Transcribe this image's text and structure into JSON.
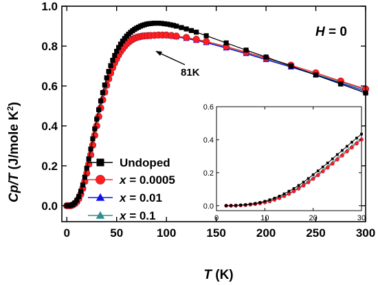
{
  "chart_data": {
    "type": "line",
    "main": {
      "xlabel_italic": "T",
      "xlabel_rest": " (K)",
      "ylabel_italic": "Cp/T",
      "ylabel_rest": " (J/mole K",
      "ylabel_sup": "2",
      "ylabel_close": ")",
      "xlim": [
        -5,
        300
      ],
      "ylim": [
        -0.08,
        1.0
      ],
      "xticks": [
        "0",
        "50",
        "100",
        "150",
        "200",
        "250",
        "300"
      ],
      "yticks": [
        "0.0",
        "0.2",
        "0.4",
        "0.6",
        "0.8",
        "1.0"
      ],
      "grid": false,
      "legend_position": "bottom-left",
      "annotations": {
        "field_italic": "H",
        "field_rest": " = 0",
        "arrow_label": "81K"
      },
      "series": [
        {
          "name": "Undoped",
          "color": "#000000",
          "marker": "square",
          "x": [
            0,
            2,
            4,
            6,
            8,
            10,
            12,
            14,
            16,
            18,
            20,
            22,
            24,
            26,
            28,
            30,
            32,
            34,
            36,
            38,
            40,
            42,
            44,
            46,
            48,
            50,
            52,
            54,
            56,
            58,
            60,
            62,
            64,
            66,
            68,
            70,
            72,
            74,
            76,
            78,
            80,
            82,
            84,
            86,
            88,
            90,
            92,
            95,
            98,
            101,
            104,
            107,
            110,
            115,
            120,
            125,
            130,
            140,
            160,
            180,
            200,
            225,
            250,
            275,
            300
          ],
          "values": [
            0.0,
            0.0,
            0.002,
            0.006,
            0.014,
            0.027,
            0.046,
            0.072,
            0.104,
            0.143,
            0.188,
            0.235,
            0.284,
            0.335,
            0.385,
            0.434,
            0.481,
            0.525,
            0.567,
            0.605,
            0.641,
            0.673,
            0.702,
            0.729,
            0.753,
            0.774,
            0.793,
            0.81,
            0.825,
            0.838,
            0.85,
            0.86,
            0.869,
            0.877,
            0.884,
            0.89,
            0.895,
            0.9,
            0.904,
            0.907,
            0.91,
            0.912,
            0.913,
            0.914,
            0.915,
            0.915,
            0.915,
            0.914,
            0.912,
            0.91,
            0.907,
            0.904,
            0.9,
            0.893,
            0.886,
            0.878,
            0.87,
            0.852,
            0.816,
            0.78,
            0.745,
            0.7,
            0.655,
            0.61,
            0.565
          ]
        },
        {
          "name": "x = 0.0005",
          "color": "#ff1e1e",
          "marker": "circle",
          "x": [
            0,
            2,
            4,
            6,
            8,
            10,
            12,
            14,
            16,
            18,
            20,
            22,
            24,
            26,
            28,
            30,
            32,
            34,
            36,
            38,
            40,
            42,
            44,
            46,
            48,
            50,
            52,
            54,
            56,
            58,
            60,
            62,
            64,
            66,
            68,
            70,
            72,
            74,
            76,
            78,
            81,
            84,
            88,
            92,
            96,
            100,
            105,
            110,
            120,
            130,
            140,
            160,
            180,
            200,
            225,
            250,
            275,
            300
          ],
          "values": [
            0.0,
            0.0,
            0.0,
            0.004,
            0.01,
            0.02,
            0.036,
            0.058,
            0.087,
            0.122,
            0.163,
            0.208,
            0.255,
            0.304,
            0.353,
            0.401,
            0.447,
            0.49,
            0.531,
            0.569,
            0.604,
            0.636,
            0.665,
            0.692,
            0.716,
            0.737,
            0.756,
            0.773,
            0.787,
            0.8,
            0.811,
            0.82,
            0.828,
            0.834,
            0.839,
            0.843,
            0.846,
            0.848,
            0.85,
            0.851,
            0.852,
            0.853,
            0.854,
            0.855,
            0.855,
            0.855,
            0.853,
            0.85,
            0.843,
            0.834,
            0.823,
            0.798,
            0.77,
            0.741,
            0.704,
            0.666,
            0.625,
            0.585
          ]
        },
        {
          "name": "x = 0.01",
          "color": "#1010ee",
          "marker": "triangle",
          "x": [
            0,
            2,
            4,
            6,
            8,
            10,
            12,
            14,
            16,
            18,
            20,
            22,
            24,
            26,
            28,
            30,
            32,
            34,
            36,
            38,
            40,
            42,
            44,
            46,
            48,
            50,
            52,
            54,
            56,
            58,
            60,
            62,
            64,
            66,
            68,
            70,
            72,
            74,
            76,
            78,
            81,
            84,
            88,
            92,
            96,
            100,
            105,
            110,
            120,
            130,
            140,
            160,
            180,
            200,
            225,
            250,
            275,
            300
          ],
          "values": [
            0.0,
            0.0,
            0.0,
            0.004,
            0.01,
            0.02,
            0.036,
            0.058,
            0.087,
            0.122,
            0.163,
            0.208,
            0.255,
            0.304,
            0.353,
            0.401,
            0.447,
            0.49,
            0.531,
            0.569,
            0.604,
            0.636,
            0.665,
            0.692,
            0.716,
            0.737,
            0.756,
            0.773,
            0.787,
            0.8,
            0.811,
            0.82,
            0.828,
            0.834,
            0.839,
            0.843,
            0.846,
            0.848,
            0.85,
            0.851,
            0.852,
            0.853,
            0.854,
            0.854,
            0.853,
            0.852,
            0.85,
            0.846,
            0.838,
            0.828,
            0.817,
            0.79,
            0.762,
            0.732,
            0.695,
            0.656,
            0.615,
            0.573
          ]
        },
        {
          "name": "x = 0.1",
          "color": "#2f8f8f",
          "marker": "triangle",
          "x": [
            0,
            2,
            4,
            6,
            8,
            10,
            12,
            14,
            16,
            18,
            20,
            22,
            24,
            26,
            28,
            30,
            32,
            34,
            36,
            38,
            40,
            42,
            44,
            46,
            48,
            50,
            52,
            54,
            56,
            58,
            60,
            62,
            64,
            66,
            68,
            70,
            72,
            74,
            76,
            78,
            81,
            84,
            88,
            92,
            96,
            100,
            105,
            110,
            120,
            130,
            140,
            160,
            180,
            200,
            225,
            250,
            275,
            300
          ],
          "values": [
            0.0,
            0.0,
            0.0,
            0.004,
            0.011,
            0.022,
            0.039,
            0.062,
            0.092,
            0.128,
            0.17,
            0.216,
            0.264,
            0.314,
            0.363,
            0.411,
            0.457,
            0.5,
            0.541,
            0.579,
            0.614,
            0.646,
            0.675,
            0.701,
            0.725,
            0.746,
            0.765,
            0.781,
            0.795,
            0.807,
            0.817,
            0.826,
            0.833,
            0.839,
            0.844,
            0.848,
            0.851,
            0.853,
            0.855,
            0.856,
            0.857,
            0.858,
            0.858,
            0.858,
            0.857,
            0.856,
            0.853,
            0.849,
            0.841,
            0.831,
            0.82,
            0.793,
            0.765,
            0.736,
            0.698,
            0.66,
            0.62,
            0.58
          ]
        }
      ]
    },
    "inset": {
      "xlim": [
        0,
        30
      ],
      "ylim": [
        -0.03,
        0.6
      ],
      "xticks": [
        "0",
        "10",
        "20",
        "30"
      ],
      "yticks": [
        "0.0",
        "0.2",
        "0.4",
        "0.6"
      ],
      "series": [
        {
          "color": "#000000",
          "marker": "square",
          "x": [
            2,
            3,
            4,
            5,
            6,
            7,
            8,
            9,
            10,
            11,
            12,
            13,
            14,
            15,
            16,
            17,
            18,
            19,
            20,
            21,
            22,
            23,
            24,
            25,
            26,
            27,
            28,
            29,
            30
          ],
          "values": [
            0.0,
            0.001,
            0.002,
            0.004,
            0.006,
            0.01,
            0.014,
            0.02,
            0.027,
            0.036,
            0.046,
            0.058,
            0.072,
            0.088,
            0.104,
            0.123,
            0.143,
            0.165,
            0.188,
            0.211,
            0.235,
            0.259,
            0.284,
            0.31,
            0.335,
            0.36,
            0.385,
            0.41,
            0.434
          ]
        },
        {
          "color": "#ff1e1e",
          "marker": "circle",
          "x": [
            2,
            3,
            4,
            5,
            6,
            7,
            8,
            9,
            10,
            11,
            12,
            13,
            14,
            15,
            16,
            17,
            18,
            19,
            20,
            21,
            22,
            23,
            24,
            25,
            26,
            27,
            28,
            29,
            30
          ],
          "values": [
            0.0,
            0.0,
            0.0,
            0.002,
            0.004,
            0.007,
            0.01,
            0.015,
            0.02,
            0.027,
            0.036,
            0.046,
            0.058,
            0.072,
            0.087,
            0.104,
            0.122,
            0.142,
            0.163,
            0.185,
            0.208,
            0.231,
            0.255,
            0.28,
            0.304,
            0.329,
            0.353,
            0.377,
            0.401
          ]
        },
        {
          "color": "#1010ee",
          "marker": "triangle",
          "x": [
            2,
            3,
            4,
            5,
            6,
            7,
            8,
            9,
            10,
            11,
            12,
            13,
            14,
            15,
            16,
            17,
            18,
            19,
            20,
            21,
            22,
            23,
            24,
            25,
            26,
            27,
            28,
            29,
            30
          ],
          "values": [
            0.0,
            0.0,
            0.0,
            0.002,
            0.004,
            0.007,
            0.01,
            0.015,
            0.02,
            0.027,
            0.036,
            0.046,
            0.058,
            0.072,
            0.087,
            0.104,
            0.122,
            0.142,
            0.163,
            0.185,
            0.208,
            0.231,
            0.255,
            0.28,
            0.304,
            0.329,
            0.353,
            0.377,
            0.401
          ]
        },
        {
          "color": "#2f8f8f",
          "marker": "triangle",
          "x": [
            2,
            3,
            4,
            5,
            6,
            7,
            8,
            9,
            10,
            11,
            12,
            13,
            14,
            15,
            16,
            17,
            18,
            19,
            20,
            21,
            22,
            23,
            24,
            25,
            26,
            27,
            28,
            29,
            30
          ],
          "values": [
            0.0,
            0.0,
            0.0,
            0.002,
            0.004,
            0.007,
            0.011,
            0.016,
            0.022,
            0.03,
            0.039,
            0.05,
            0.062,
            0.076,
            0.092,
            0.109,
            0.128,
            0.148,
            0.17,
            0.192,
            0.216,
            0.24,
            0.264,
            0.289,
            0.314,
            0.338,
            0.363,
            0.387,
            0.411
          ]
        }
      ]
    }
  }
}
